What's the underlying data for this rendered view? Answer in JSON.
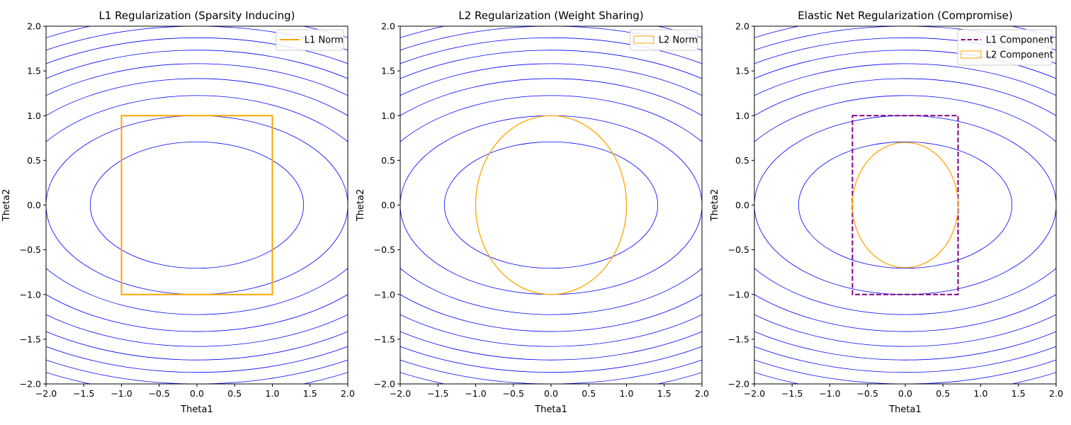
{
  "chart_data": [
    {
      "type": "contour",
      "title": "L1 Regularization (Sparsity Inducing)",
      "xlabel": "Theta1",
      "ylabel": "Theta2",
      "xlim": [
        -2.0,
        2.0
      ],
      "ylim": [
        -2.0,
        2.0
      ],
      "xticks": [
        "−2.0",
        "−1.5",
        "−1.0",
        "−0.5",
        "0.0",
        "0.5",
        "1.0",
        "1.5",
        "2.0"
      ],
      "yticks": [
        "−2.0",
        "−1.5",
        "−1.0",
        "−0.5",
        "0.0",
        "0.5",
        "1.0",
        "1.5",
        "2.0"
      ],
      "grid": false,
      "legend_position": "top-right",
      "contours": {
        "function": "theta1^2 + 4*theta2^2",
        "levels": [
          2,
          4,
          6,
          8,
          10,
          12,
          14,
          16,
          18,
          20
        ],
        "color": "#0000ff"
      },
      "constraints": [
        {
          "name": "L1 Norm",
          "shape": "rectangle",
          "x_range": [
            -1.0,
            1.0
          ],
          "y_range": [
            -1.0,
            1.0
          ],
          "color": "#ffa500",
          "style": "solid",
          "legend_marker": "line"
        }
      ]
    },
    {
      "type": "contour",
      "title": "L2 Regularization (Weight Sharing)",
      "xlabel": "Theta1",
      "ylabel": "Theta2",
      "xlim": [
        -2.0,
        2.0
      ],
      "ylim": [
        -2.0,
        2.0
      ],
      "xticks": [
        "−2.0",
        "−1.5",
        "−1.0",
        "−0.5",
        "0.0",
        "0.5",
        "1.0",
        "1.5",
        "2.0"
      ],
      "yticks": [
        "−2.0",
        "−1.5",
        "−1.0",
        "−0.5",
        "0.0",
        "0.5",
        "1.0",
        "1.5",
        "2.0"
      ],
      "grid": false,
      "legend_position": "top-right",
      "contours": {
        "function": "theta1^2 + 4*theta2^2",
        "levels": [
          2,
          4,
          6,
          8,
          10,
          12,
          14,
          16,
          18,
          20
        ],
        "color": "#0000ff"
      },
      "constraints": [
        {
          "name": "L2 Norm",
          "shape": "ellipse",
          "center": [
            0,
            0
          ],
          "radius": 1.0,
          "color": "#ffa500",
          "style": "solid",
          "legend_marker": "patch"
        }
      ]
    },
    {
      "type": "contour",
      "title": "Elastic Net Regularization (Compromise)",
      "xlabel": "Theta1",
      "ylabel": "Theta2",
      "xlim": [
        -2.0,
        2.0
      ],
      "ylim": [
        -2.0,
        2.0
      ],
      "xticks": [
        "−2.0",
        "−1.5",
        "−1.0",
        "−0.5",
        "0.0",
        "0.5",
        "1.0",
        "1.5",
        "2.0"
      ],
      "yticks": [
        "−2.0",
        "−1.5",
        "−1.0",
        "−0.5",
        "0.0",
        "0.5",
        "1.0",
        "1.5",
        "2.0"
      ],
      "grid": false,
      "legend_position": "top-right",
      "contours": {
        "function": "theta1^2 + 4*theta2^2",
        "levels": [
          2,
          4,
          6,
          8,
          10,
          12,
          14,
          16,
          18,
          20
        ],
        "color": "#0000ff"
      },
      "constraints": [
        {
          "name": "L1 Component",
          "shape": "rectangle",
          "x_range": [
            -0.7,
            0.7
          ],
          "y_range": [
            -1.0,
            1.0
          ],
          "color": "#800080",
          "style": "dashed",
          "legend_marker": "line"
        },
        {
          "name": "L2 Component",
          "shape": "ellipse",
          "center": [
            0,
            0
          ],
          "radius": 0.7,
          "color": "#ffa500",
          "style": "solid",
          "legend_marker": "patch"
        }
      ]
    }
  ]
}
